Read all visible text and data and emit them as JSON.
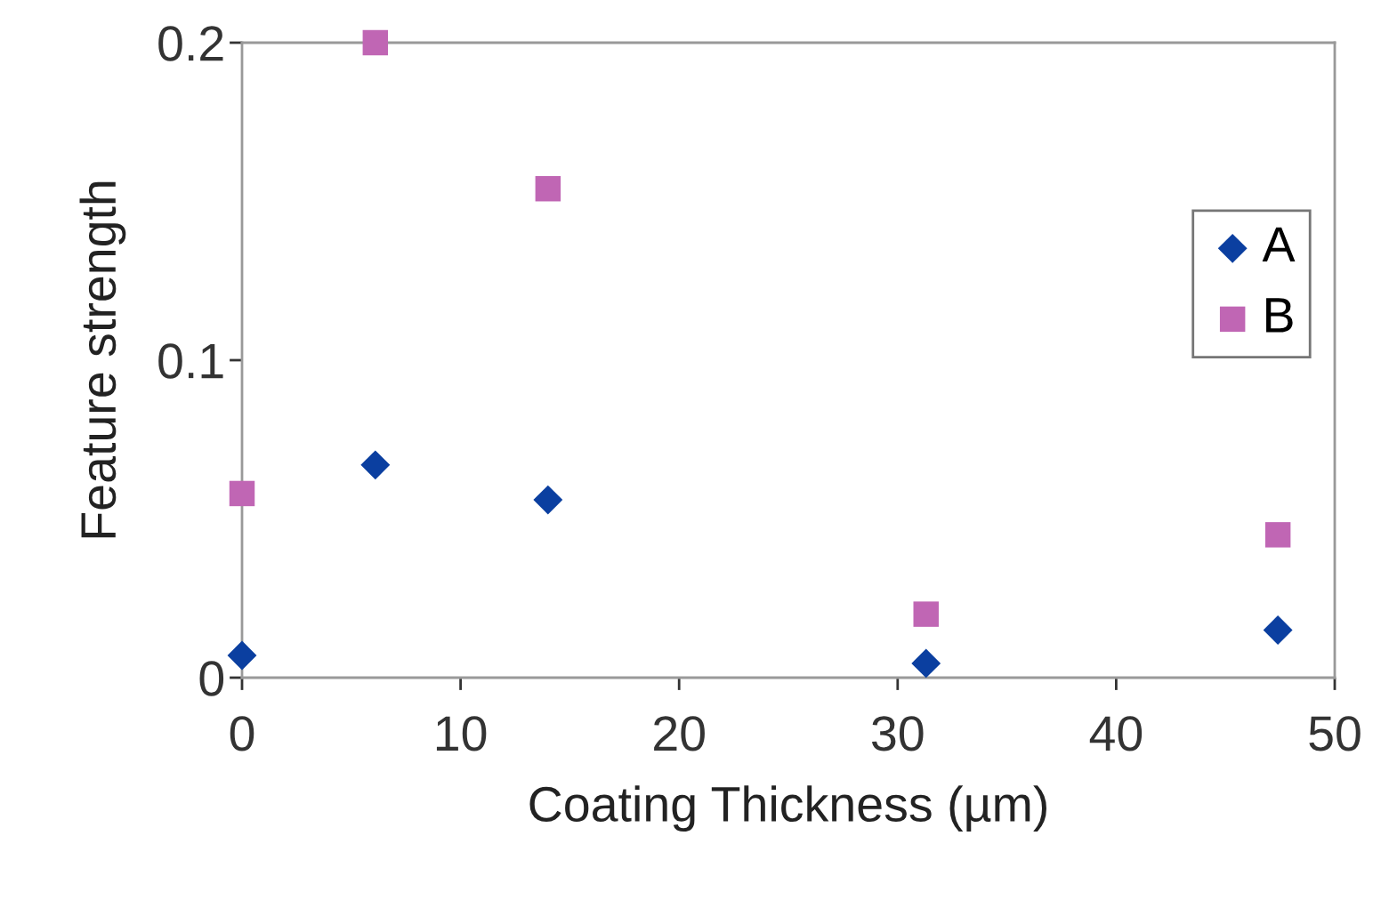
{
  "chart_data": {
    "type": "scatter",
    "xlabel": "Coating Thickness (µm)",
    "ylabel": "Feature strength",
    "x": [
      0,
      6.1,
      14,
      31.3,
      47.4
    ],
    "series": [
      {
        "name": "A",
        "color": "#0b3fa0",
        "marker": "diamond",
        "values": [
          0.007,
          0.067,
          0.056,
          0.0045,
          0.015
        ]
      },
      {
        "name": "B",
        "color": "#c066b4",
        "marker": "square",
        "values": [
          0.058,
          0.2,
          0.154,
          0.02,
          0.045
        ]
      }
    ],
    "xlim": [
      0,
      50
    ],
    "xticks": [
      0,
      10,
      20,
      30,
      40,
      50
    ],
    "ylim": [
      0,
      0.2
    ],
    "yticks": [
      0,
      0.1,
      0.2
    ],
    "grid": false,
    "legend": "right"
  }
}
